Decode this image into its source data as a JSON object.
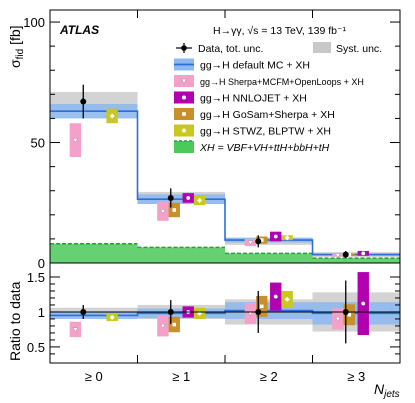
{
  "figure": {
    "experiment": "ATLAS",
    "process": "H→γγ, √s = 13 TeV, 139 fb⁻¹",
    "legend": [
      {
        "key": "data",
        "label": "Data, tot. unc."
      },
      {
        "key": "syst",
        "label": "Syst. unc."
      },
      {
        "key": "default",
        "label": "gg→H default MC + XH"
      },
      {
        "key": "sherpa",
        "label": "gg→H Sherpa+MCFM+OpenLoops + XH"
      },
      {
        "key": "nnlojet",
        "label": "gg→H NNLOJET + XH"
      },
      {
        "key": "gosam",
        "label": "gg→H GoSam+Sherpa + XH"
      },
      {
        "key": "stwz",
        "label": "gg→H STWZ, BLPTW + XH"
      },
      {
        "key": "xh",
        "label": "XH = VBF+VH+ttH+bbH+tH"
      }
    ],
    "colors": {
      "default": "#2b6fd8",
      "default_band": "#8fb8f0",
      "sherpa": "#f5a0c8",
      "nnlojet": "#b000b0",
      "gosam": "#c8902a",
      "stwz": "#c8c820",
      "xh": "#4bc95a",
      "xh_line": "#2ba03a",
      "syst": "#c8c8c8"
    }
  },
  "chart_data": [
    {
      "type": "bar",
      "title": "",
      "ylabel": "σfid [fb]",
      "ylim": [
        0,
        105
      ],
      "yticks": [
        0,
        50,
        100
      ],
      "categories": [
        "≥ 0",
        "≥ 1",
        "≥ 2",
        "≥ 3"
      ],
      "series": [
        {
          "name": "Data",
          "values": [
            67,
            27,
            9,
            3.5
          ],
          "err_low": [
            7,
            4,
            2.5,
            1.5
          ],
          "err_high": [
            7,
            4,
            2.5,
            1.5
          ],
          "syst": [
            4,
            2.5,
            1.5,
            1
          ]
        },
        {
          "name": "gg→H default MC + XH",
          "values": [
            63,
            26.5,
            9.5,
            3.5
          ],
          "band": [
            3,
            2,
            1,
            0.5
          ]
        },
        {
          "name": "gg→H Sherpa+MCFM+OpenLoops + XH",
          "values": [
            51,
            21.5,
            8.5,
            3.2
          ],
          "band": [
            7,
            4,
            1.5,
            0.6
          ]
        },
        {
          "name": "gg→H NNLOJET + XH",
          "values": [
            null,
            27,
            11,
            4
          ],
          "band": [
            null,
            2,
            2,
            1
          ]
        },
        {
          "name": "gg→H GoSam+Sherpa + XH",
          "values": [
            null,
            22,
            9.5,
            3.4
          ],
          "band": [
            null,
            3,
            1.5,
            0.5
          ]
        },
        {
          "name": "gg→H STWZ, BLPTW + XH",
          "values": [
            61,
            26,
            10.5,
            null
          ],
          "band": [
            3,
            2,
            1,
            null
          ]
        },
        {
          "name": "XH = VBF+VH+ttH+bbH+tH",
          "values": [
            8,
            6.5,
            4,
            2
          ]
        }
      ]
    },
    {
      "type": "bar",
      "ylabel": "Ratio to data",
      "xlabel": "Njets",
      "ylim": [
        0.27,
        1.7
      ],
      "yticks": [
        0.5,
        1,
        1.5
      ],
      "categories": [
        "≥ 0",
        "≥ 1",
        "≥ 2",
        "≥ 3"
      ],
      "series": [
        {
          "name": "Data",
          "values": [
            1,
            1,
            1,
            1
          ],
          "err_low": [
            0.1,
            0.17,
            0.3,
            0.45
          ],
          "err_high": [
            0.1,
            0.17,
            0.3,
            0.45
          ],
          "syst": [
            0.06,
            0.1,
            0.18,
            0.28
          ]
        },
        {
          "name": "gg→H default MC + XH",
          "values": [
            0.95,
            0.98,
            1.02,
            0.98
          ],
          "band": [
            0.05,
            0.07,
            0.12,
            0.16
          ]
        },
        {
          "name": "gg→H Sherpa+MCFM+OpenLoops + XH",
          "values": [
            0.75,
            0.8,
            0.98,
            0.9
          ],
          "band": [
            0.11,
            0.15,
            0.15,
            0.15
          ]
        },
        {
          "name": "gg→H NNLOJET + XH",
          "values": [
            null,
            1.0,
            1.22,
            1.12
          ],
          "band": [
            null,
            0.08,
            0.2,
            0.45
          ]
        },
        {
          "name": "gg→H GoSam+Sherpa + XH",
          "values": [
            null,
            0.82,
            1.08,
            0.96
          ],
          "band": [
            null,
            0.11,
            0.15,
            0.15
          ]
        },
        {
          "name": "gg→H STWZ, BLPTW + XH",
          "values": [
            0.92,
            0.98,
            1.18,
            null
          ],
          "band": [
            0.05,
            0.08,
            0.12,
            null
          ]
        }
      ]
    }
  ]
}
